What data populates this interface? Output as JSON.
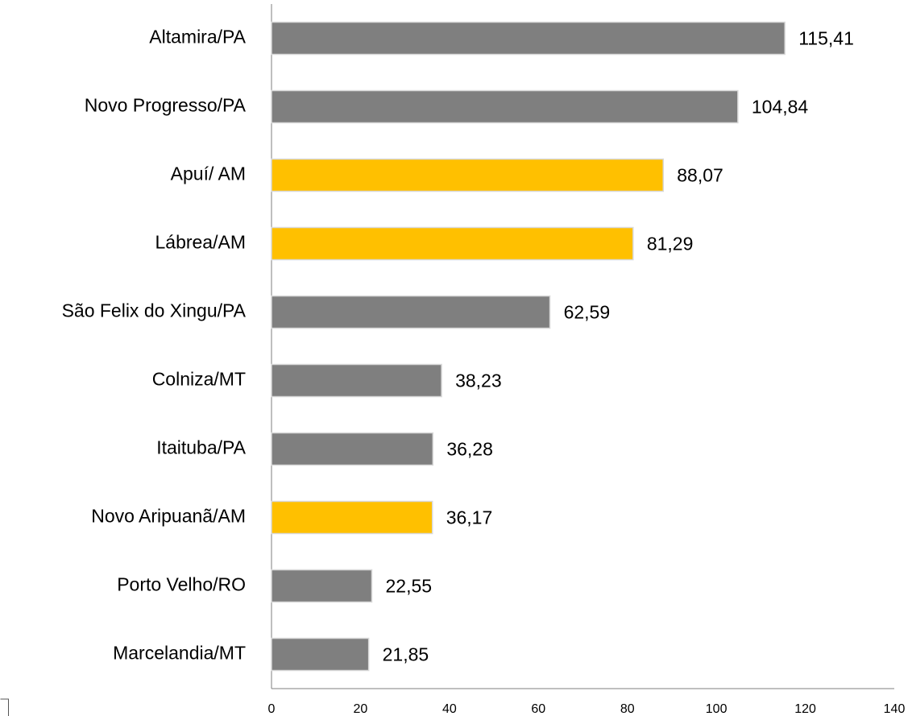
{
  "chart_data": {
    "type": "barh",
    "categories": [
      "Altamira/PA",
      "Novo Progresso/PA",
      "Apuí/ AM",
      "Lábrea/AM",
      "São Felix do Xingu/PA",
      "Colniza/MT",
      "Itaituba/PA",
      "Novo Aripuanã/AM",
      "Porto Velho/RO",
      "Marcelandia/MT"
    ],
    "values": [
      115.41,
      104.84,
      88.07,
      81.29,
      62.59,
      38.23,
      36.28,
      36.17,
      22.55,
      21.85
    ],
    "value_labels": [
      "115,41",
      "104,84",
      "88,07",
      "81,29",
      "62,59",
      "38,23",
      "36,28",
      "36,17",
      "22,55",
      "21,85"
    ],
    "colors": [
      "#7f7f7f",
      "#7f7f7f",
      "#ffc000",
      "#ffc000",
      "#7f7f7f",
      "#7f7f7f",
      "#7f7f7f",
      "#ffc000",
      "#7f7f7f",
      "#7f7f7f"
    ],
    "xlim": [
      0,
      140
    ],
    "xticks": [
      0,
      20,
      40,
      60,
      80,
      100,
      120,
      140
    ],
    "grid": false
  }
}
